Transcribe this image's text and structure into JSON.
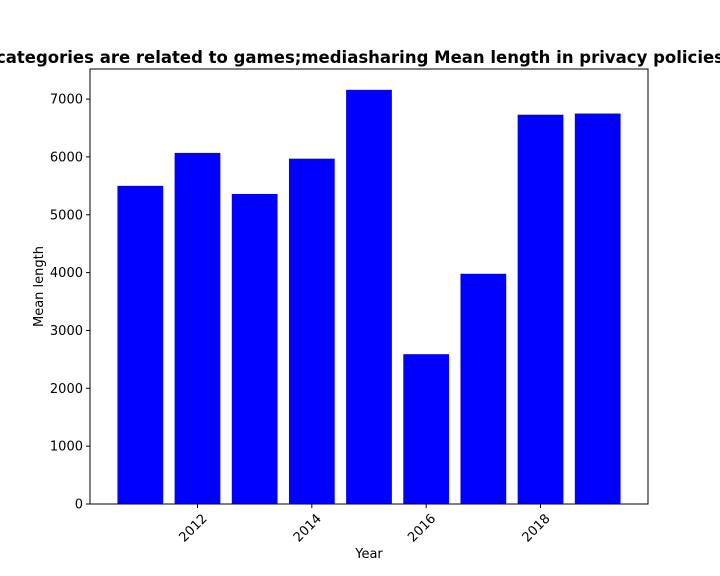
{
  "chart_data": {
    "type": "bar",
    "title": "categories are related to games;mediasharing Mean length in privacy policies",
    "xlabel": "Year",
    "ylabel": "Mean length",
    "x": [
      2011,
      2012,
      2013,
      2014,
      2015,
      2016,
      2017,
      2018,
      2019
    ],
    "values": [
      5500,
      6070,
      5360,
      5970,
      7160,
      2590,
      3980,
      6730,
      6750
    ],
    "xlim": [
      2010.12,
      2019.88
    ],
    "ylim": [
      0,
      7520
    ],
    "x_ticks": [
      "2012",
      "2014",
      "2016",
      "2018"
    ],
    "y_ticks": [
      "0",
      "1000",
      "2000",
      "3000",
      "4000",
      "5000",
      "6000",
      "7000"
    ],
    "bar_color": "#0000ff",
    "grid": false,
    "x_tick_rotation": "45 degrees"
  }
}
